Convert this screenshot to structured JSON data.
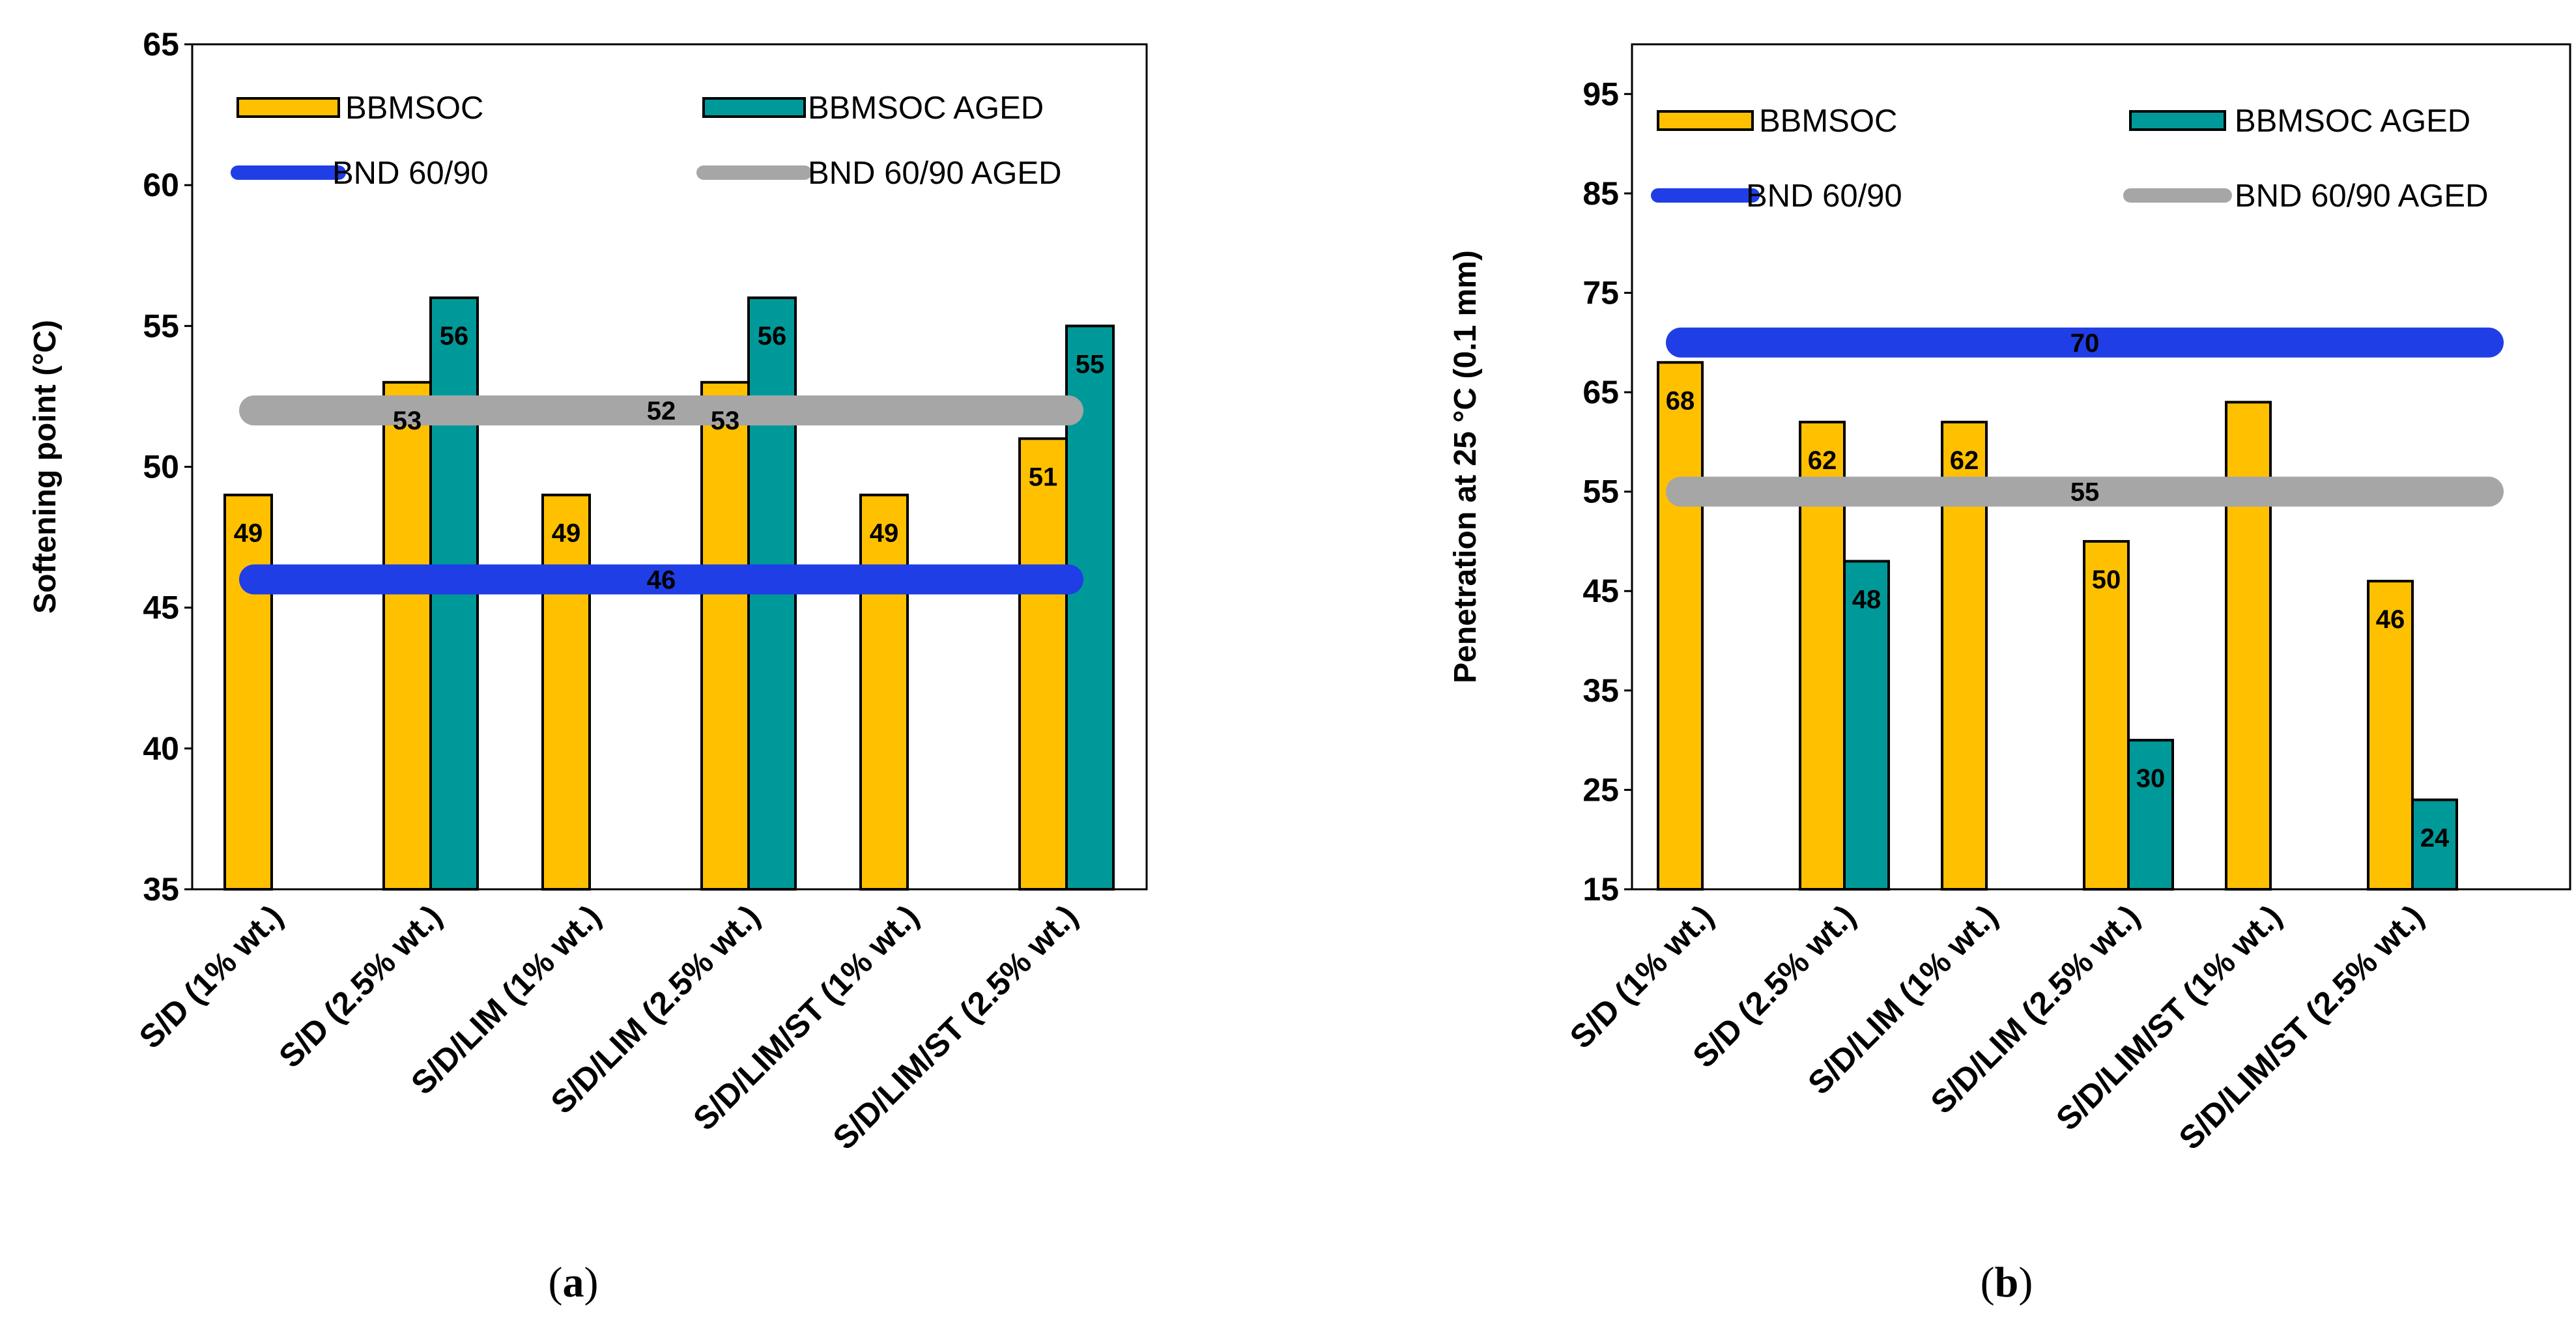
{
  "colors": {
    "bbmsoc": "#FFC000",
    "bbmsoc_aged": "#009999",
    "bnd": "#1F3EE6",
    "bnd_aged": "#A6A6A6"
  },
  "chart_data": [
    {
      "type": "bar",
      "panel_label": "a",
      "ylabel": "Softening point (°C)",
      "ylim": [
        35,
        65
      ],
      "yticks": [
        "35",
        "40",
        "45",
        "50",
        "55",
        "60",
        "65"
      ],
      "categories": [
        "S/D (1% wt.)",
        "S/D (2.5% wt.)",
        "S/D/LIM (1% wt.)",
        "S/D/LIM (2.5% wt.)",
        "S/D/LIM/ST (1% wt.)",
        "S/D/LIM/ST (2.5% wt.)"
      ],
      "series": [
        {
          "name": "BBMSOC",
          "values": [
            49,
            53,
            49,
            53,
            49,
            51
          ],
          "labels": [
            "49",
            "53",
            "49",
            "53",
            "49",
            "51"
          ]
        },
        {
          "name": "BBMSOC AGED",
          "values": [
            35,
            56,
            35,
            56,
            35,
            55
          ],
          "labels": [
            "",
            "56",
            "",
            "56",
            "",
            "55"
          ]
        }
      ],
      "reference_lines": [
        {
          "name": "BND 60/90",
          "value": 46,
          "label": "46"
        },
        {
          "name": "BND 60/90 AGED",
          "value": 52,
          "label": "52"
        }
      ],
      "legend": "top"
    },
    {
      "type": "bar",
      "panel_label": "b",
      "ylabel": "Penetration at 25 °C (0.1 mm)",
      "ylim": [
        15,
        100
      ],
      "yticks": [
        "15",
        "25",
        "35",
        "45",
        "55",
        "65",
        "75",
        "85",
        "95"
      ],
      "categories": [
        "S/D (1% wt.)",
        "S/D (2.5% wt.)",
        "S/D/LIM (1% wt.)",
        "S/D/LIM (2.5% wt.)",
        "S/D/LIM/ST (1% wt.)",
        "S/D/LIM/ST (2.5% wt.)"
      ],
      "series": [
        {
          "name": "BBMSOC",
          "values": [
            68,
            62,
            62,
            50,
            64,
            46
          ],
          "labels": [
            "68",
            "62",
            "62",
            "50",
            "",
            "46"
          ]
        },
        {
          "name": "BBMSOC AGED",
          "values": [
            15,
            48,
            15,
            30,
            15,
            24
          ],
          "labels": [
            "",
            "48",
            "",
            "30",
            "",
            "24"
          ]
        }
      ],
      "reference_lines": [
        {
          "name": "BND 60/90",
          "value": 70,
          "label": "70"
        },
        {
          "name": "BND 60/90 AGED",
          "value": 55,
          "label": "55"
        }
      ],
      "legend": "top"
    }
  ]
}
